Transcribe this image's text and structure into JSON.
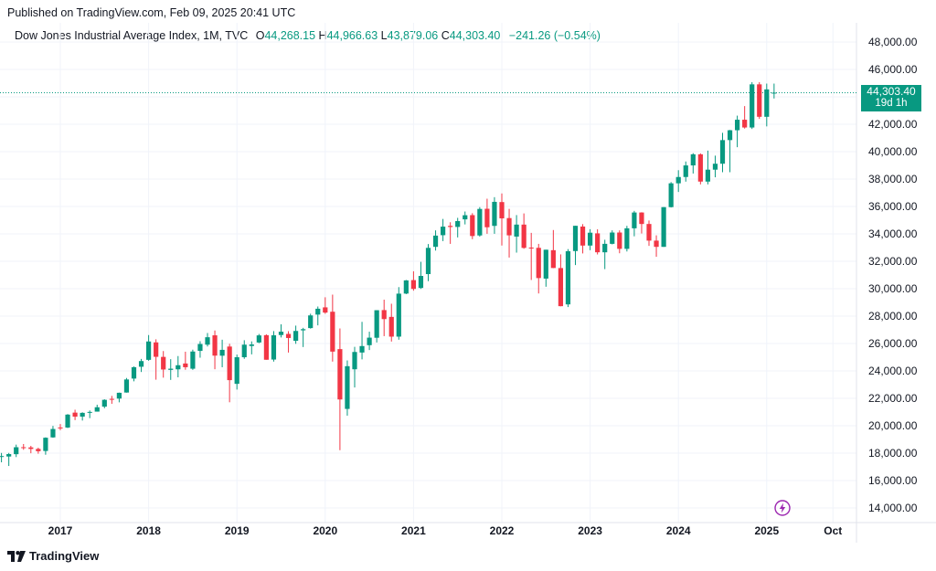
{
  "header": {
    "published": "Published on TradingView.com, Feb 09, 2025 20:41 UTC"
  },
  "legend": {
    "symbol": "Dow Jones Industrial Average Index, 1M, TVC",
    "o_label": "O",
    "o_value": "44,268.15",
    "h_label": "H",
    "h_value": "44,966.63",
    "l_label": "L",
    "l_value": "43,879.06",
    "c_label": "C",
    "c_value": "44,303.40",
    "change": "−241.26 (−0.54%)"
  },
  "price_tag": {
    "price": "44,303.40",
    "countdown": "19d 1h"
  },
  "footer": {
    "brand": "TradingView",
    "brand_icon": "tradingview-logo-icon",
    "bolt_icon": "lightning-bolt-icon"
  },
  "colors": {
    "up": "#089981",
    "down": "#F23645",
    "grid": "#F0F3FA",
    "accent": "#9C27B0"
  },
  "chart_data": {
    "type": "candlestick",
    "interval": "1M",
    "ylim": [
      13000,
      49000
    ],
    "y_ticks": [
      "14,000.00",
      "16,000.00",
      "18,000.00",
      "20,000.00",
      "22,000.00",
      "24,000.00",
      "26,000.00",
      "28,000.00",
      "30,000.00",
      "32,000.00",
      "34,000.00",
      "36,000.00",
      "38,000.00",
      "40,000.00",
      "42,000.00",
      "44,000.00",
      "46,000.00",
      "48,000.00"
    ],
    "x_ticks": [
      "2017",
      "2018",
      "2019",
      "2020",
      "2021",
      "2022",
      "2023",
      "2024",
      "2025",
      "Oct"
    ],
    "grid": true,
    "last_close_line": 44303.4,
    "candles": [
      {
        "t": "2016-05",
        "o": 17774,
        "h": 18016,
        "l": 17331,
        "c": 17787
      },
      {
        "t": "2016-06",
        "o": 17754,
        "h": 18016,
        "l": 17063,
        "c": 17930
      },
      {
        "t": "2016-07",
        "o": 17924,
        "h": 18622,
        "l": 17713,
        "c": 18432
      },
      {
        "t": "2016-08",
        "o": 18434,
        "h": 18668,
        "l": 18247,
        "c": 18401
      },
      {
        "t": "2016-09",
        "o": 18419,
        "h": 18534,
        "l": 17992,
        "c": 18308
      },
      {
        "t": "2016-10",
        "o": 18308,
        "h": 18399,
        "l": 17959,
        "c": 18142
      },
      {
        "t": "2016-11",
        "o": 18158,
        "h": 19152,
        "l": 17884,
        "c": 19124
      },
      {
        "t": "2016-12",
        "o": 19149,
        "h": 19987,
        "l": 19121,
        "c": 19763
      },
      {
        "t": "2017-01",
        "o": 19873,
        "h": 20125,
        "l": 19677,
        "c": 19864
      },
      {
        "t": "2017-02",
        "o": 19869,
        "h": 20851,
        "l": 19831,
        "c": 20812
      },
      {
        "t": "2017-03",
        "o": 20957,
        "h": 21169,
        "l": 20412,
        "c": 20663
      },
      {
        "t": "2017-04",
        "o": 20665,
        "h": 20980,
        "l": 20379,
        "c": 20940
      },
      {
        "t": "2017-05",
        "o": 20962,
        "h": 21113,
        "l": 20554,
        "c": 21009
      },
      {
        "t": "2017-06",
        "o": 21030,
        "h": 21535,
        "l": 21030,
        "c": 21350
      },
      {
        "t": "2017-07",
        "o": 21392,
        "h": 21929,
        "l": 21279,
        "c": 21891
      },
      {
        "t": "2017-08",
        "o": 21961,
        "h": 22179,
        "l": 21600,
        "c": 21948
      },
      {
        "t": "2017-09",
        "o": 21981,
        "h": 22419,
        "l": 21709,
        "c": 22405
      },
      {
        "t": "2017-10",
        "o": 22423,
        "h": 23485,
        "l": 22416,
        "c": 23377
      },
      {
        "t": "2017-11",
        "o": 23442,
        "h": 24328,
        "l": 23242,
        "c": 24272
      },
      {
        "t": "2017-12",
        "o": 24305,
        "h": 24876,
        "l": 23921,
        "c": 24719
      },
      {
        "t": "2018-01",
        "o": 24809,
        "h": 26617,
        "l": 24741,
        "c": 26149
      },
      {
        "t": "2018-02",
        "o": 26083,
        "h": 26307,
        "l": 23360,
        "c": 25029
      },
      {
        "t": "2018-03",
        "o": 25024,
        "h": 25450,
        "l": 23509,
        "c": 24103
      },
      {
        "t": "2018-04",
        "o": 24076,
        "h": 24858,
        "l": 23345,
        "c": 24163
      },
      {
        "t": "2018-05",
        "o": 24117,
        "h": 25086,
        "l": 23532,
        "c": 24416
      },
      {
        "t": "2018-06",
        "o": 24542,
        "h": 25403,
        "l": 24085,
        "c": 24271
      },
      {
        "t": "2018-07",
        "o": 24161,
        "h": 25552,
        "l": 24077,
        "c": 25415
      },
      {
        "t": "2018-08",
        "o": 25462,
        "h": 26167,
        "l": 24965,
        "c": 25965
      },
      {
        "t": "2018-09",
        "o": 25916,
        "h": 26770,
        "l": 25782,
        "c": 26458
      },
      {
        "t": "2018-10",
        "o": 26598,
        "h": 26951,
        "l": 24123,
        "c": 25116
      },
      {
        "t": "2018-11",
        "o": 25111,
        "h": 26277,
        "l": 24268,
        "c": 25538
      },
      {
        "t": "2018-12",
        "o": 25779,
        "h": 25980,
        "l": 21713,
        "c": 23327
      },
      {
        "t": "2019-01",
        "o": 23058,
        "h": 25191,
        "l": 22639,
        "c": 24999
      },
      {
        "t": "2019-02",
        "o": 24999,
        "h": 26241,
        "l": 24883,
        "c": 25916
      },
      {
        "t": "2019-03",
        "o": 25819,
        "h": 26155,
        "l": 25208,
        "c": 25929
      },
      {
        "t": "2019-04",
        "o": 26075,
        "h": 26696,
        "l": 26025,
        "c": 26593
      },
      {
        "t": "2019-05",
        "o": 26609,
        "h": 26668,
        "l": 24815,
        "c": 24815
      },
      {
        "t": "2019-06",
        "o": 24830,
        "h": 26907,
        "l": 24680,
        "c": 26600
      },
      {
        "t": "2019-07",
        "o": 26620,
        "h": 27398,
        "l": 26440,
        "c": 26864
      },
      {
        "t": "2019-08",
        "o": 26700,
        "h": 26900,
        "l": 25339,
        "c": 26403
      },
      {
        "t": "2019-09",
        "o": 26198,
        "h": 27306,
        "l": 25978,
        "c": 26917
      },
      {
        "t": "2019-10",
        "o": 26962,
        "h": 27144,
        "l": 25743,
        "c": 27046
      },
      {
        "t": "2019-11",
        "o": 27126,
        "h": 28175,
        "l": 27087,
        "c": 28051
      },
      {
        "t": "2019-12",
        "o": 28110,
        "h": 28701,
        "l": 27325,
        "c": 28538
      },
      {
        "t": "2020-01",
        "o": 28638,
        "h": 29374,
        "l": 28170,
        "c": 28256
      },
      {
        "t": "2020-02",
        "o": 28319,
        "h": 29568,
        "l": 24681,
        "c": 25409
      },
      {
        "t": "2020-03",
        "o": 25591,
        "h": 27102,
        "l": 18214,
        "c": 21917
      },
      {
        "t": "2020-04",
        "o": 21227,
        "h": 24764,
        "l": 20735,
        "c": 24346
      },
      {
        "t": "2020-05",
        "o": 24120,
        "h": 25758,
        "l": 22790,
        "c": 25383
      },
      {
        "t": "2020-06",
        "o": 25342,
        "h": 27581,
        "l": 24843,
        "c": 25813
      },
      {
        "t": "2020-07",
        "o": 25879,
        "h": 26863,
        "l": 25524,
        "c": 26428
      },
      {
        "t": "2020-08",
        "o": 26419,
        "h": 28431,
        "l": 26076,
        "c": 28430
      },
      {
        "t": "2020-09",
        "o": 28439,
        "h": 29199,
        "l": 26537,
        "c": 27782
      },
      {
        "t": "2020-10",
        "o": 27941,
        "h": 28903,
        "l": 26144,
        "c": 26502
      },
      {
        "t": "2020-11",
        "o": 26502,
        "h": 30116,
        "l": 26277,
        "c": 29639
      },
      {
        "t": "2020-12",
        "o": 29644,
        "h": 30637,
        "l": 29601,
        "c": 30606
      },
      {
        "t": "2021-01",
        "o": 30627,
        "h": 31272,
        "l": 29856,
        "c": 29983
      },
      {
        "t": "2021-02",
        "o": 30054,
        "h": 31961,
        "l": 29983,
        "c": 30932
      },
      {
        "t": "2021-03",
        "o": 31065,
        "h": 33259,
        "l": 30548,
        "c": 32981
      },
      {
        "t": "2021-04",
        "o": 33054,
        "h": 34256,
        "l": 32782,
        "c": 33874
      },
      {
        "t": "2021-05",
        "o": 33904,
        "h": 35091,
        "l": 33473,
        "c": 34529
      },
      {
        "t": "2021-06",
        "o": 34584,
        "h": 34849,
        "l": 33271,
        "c": 34503
      },
      {
        "t": "2021-07",
        "o": 34507,
        "h": 35171,
        "l": 33741,
        "c": 34935
      },
      {
        "t": "2021-08",
        "o": 35059,
        "h": 35631,
        "l": 34690,
        "c": 35361
      },
      {
        "t": "2021-09",
        "o": 35368,
        "h": 35510,
        "l": 33613,
        "c": 33844
      },
      {
        "t": "2021-10",
        "o": 33885,
        "h": 35952,
        "l": 33800,
        "c": 35820
      },
      {
        "t": "2021-11",
        "o": 35833,
        "h": 36566,
        "l": 34006,
        "c": 34484
      },
      {
        "t": "2021-12",
        "o": 34584,
        "h": 36679,
        "l": 34006,
        "c": 36338
      },
      {
        "t": "2022-01",
        "o": 36321,
        "h": 36953,
        "l": 33150,
        "c": 35132
      },
      {
        "t": "2022-02",
        "o": 35153,
        "h": 35824,
        "l": 32272,
        "c": 33893
      },
      {
        "t": "2022-03",
        "o": 33803,
        "h": 35372,
        "l": 32632,
        "c": 34678
      },
      {
        "t": "2022-04",
        "o": 34678,
        "h": 35493,
        "l": 32913,
        "c": 32977
      },
      {
        "t": "2022-05",
        "o": 33000,
        "h": 34075,
        "l": 30636,
        "c": 32990
      },
      {
        "t": "2022-06",
        "o": 32983,
        "h": 33272,
        "l": 29653,
        "c": 30775
      },
      {
        "t": "2022-07",
        "o": 30737,
        "h": 32845,
        "l": 30143,
        "c": 32845
      },
      {
        "t": "2022-08",
        "o": 32810,
        "h": 34281,
        "l": 31500,
        "c": 31510
      },
      {
        "t": "2022-09",
        "o": 31507,
        "h": 32505,
        "l": 28715,
        "c": 28725
      },
      {
        "t": "2022-10",
        "o": 28855,
        "h": 32889,
        "l": 28660,
        "c": 32733
      },
      {
        "t": "2022-11",
        "o": 32747,
        "h": 34590,
        "l": 31727,
        "c": 34590
      },
      {
        "t": "2022-12",
        "o": 34536,
        "h": 34712,
        "l": 32573,
        "c": 33147
      },
      {
        "t": "2023-01",
        "o": 33148,
        "h": 34342,
        "l": 32812,
        "c": 34086
      },
      {
        "t": "2023-02",
        "o": 34039,
        "h": 34335,
        "l": 32500,
        "c": 32657
      },
      {
        "t": "2023-03",
        "o": 32656,
        "h": 33572,
        "l": 31429,
        "c": 33274
      },
      {
        "t": "2023-04",
        "o": 33274,
        "h": 34257,
        "l": 33235,
        "c": 34098
      },
      {
        "t": "2023-05",
        "o": 34099,
        "h": 34257,
        "l": 32586,
        "c": 32908
      },
      {
        "t": "2023-06",
        "o": 32908,
        "h": 34588,
        "l": 32716,
        "c": 34407
      },
      {
        "t": "2023-07",
        "o": 34407,
        "h": 35679,
        "l": 33822,
        "c": 35560
      },
      {
        "t": "2023-08",
        "o": 35560,
        "h": 35578,
        "l": 34029,
        "c": 34722
      },
      {
        "t": "2023-09",
        "o": 34722,
        "h": 34978,
        "l": 33123,
        "c": 33508
      },
      {
        "t": "2023-10",
        "o": 33508,
        "h": 33894,
        "l": 32327,
        "c": 33053
      },
      {
        "t": "2023-11",
        "o": 33053,
        "h": 35954,
        "l": 33053,
        "c": 35951
      },
      {
        "t": "2023-12",
        "o": 35951,
        "h": 37778,
        "l": 35925,
        "c": 37690
      },
      {
        "t": "2024-01",
        "o": 37690,
        "h": 38647,
        "l": 37058,
        "c": 38150
      },
      {
        "t": "2024-02",
        "o": 38150,
        "h": 39282,
        "l": 37811,
        "c": 38996
      },
      {
        "t": "2024-03",
        "o": 38996,
        "h": 39889,
        "l": 38404,
        "c": 39807
      },
      {
        "t": "2024-04",
        "o": 39807,
        "h": 39876,
        "l": 37612,
        "c": 37816
      },
      {
        "t": "2024-05",
        "o": 37816,
        "h": 40077,
        "l": 37612,
        "c": 38686
      },
      {
        "t": "2024-06",
        "o": 38686,
        "h": 39710,
        "l": 38128,
        "c": 39119
      },
      {
        "t": "2024-07",
        "o": 39119,
        "h": 41376,
        "l": 38499,
        "c": 40843
      },
      {
        "t": "2024-08",
        "o": 40843,
        "h": 41585,
        "l": 38499,
        "c": 41563
      },
      {
        "t": "2024-09",
        "o": 41563,
        "h": 42628,
        "l": 40325,
        "c": 42330
      },
      {
        "t": "2024-10",
        "o": 42330,
        "h": 43325,
        "l": 41683,
        "c": 41763
      },
      {
        "t": "2024-11",
        "o": 41763,
        "h": 45071,
        "l": 41656,
        "c": 44911
      },
      {
        "t": "2024-12",
        "o": 44911,
        "h": 45073,
        "l": 42390,
        "c": 42544
      },
      {
        "t": "2025-01",
        "o": 42544,
        "h": 44966,
        "l": 41844,
        "c": 44544
      },
      {
        "t": "2025-02",
        "o": 44268,
        "h": 44966,
        "l": 43879,
        "c": 44303
      }
    ]
  }
}
